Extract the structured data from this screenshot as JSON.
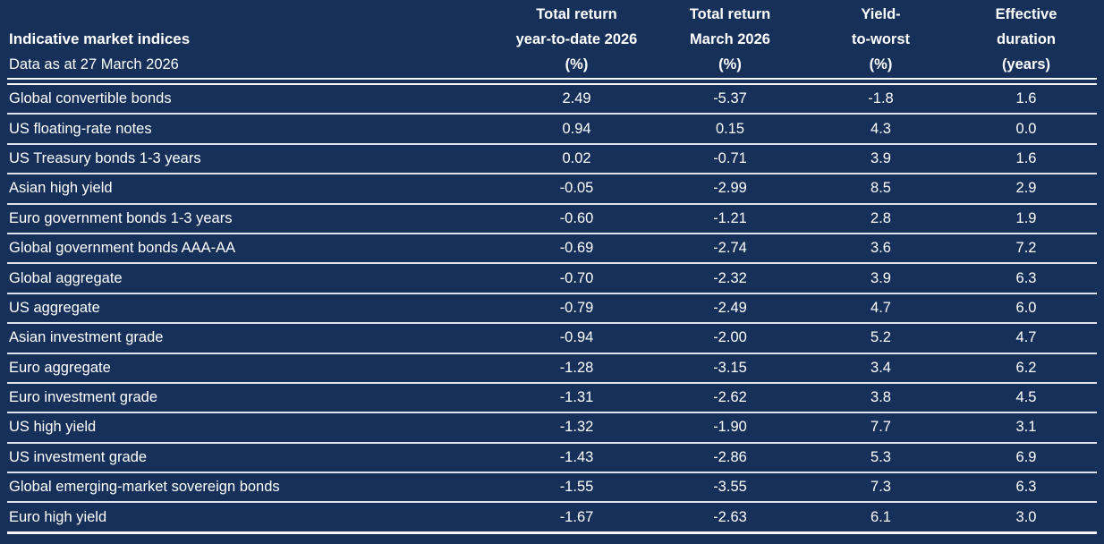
{
  "chart_data": {
    "type": "table",
    "title": "Indicative market indices",
    "subtitle": "Data as at 27 March 2026",
    "column_headers": [
      [
        "Total return",
        "year-to-date 2026",
        "(%)"
      ],
      [
        "Total return",
        "March 2026",
        "(%)"
      ],
      [
        "Yield-",
        "to-worst",
        "(%)"
      ],
      [
        "Effective",
        "duration",
        "(years)"
      ]
    ],
    "rows": [
      {
        "name": "Global convertible bonds",
        "values": [
          "2.49",
          "-5.37",
          "-1.8",
          "1.6"
        ]
      },
      {
        "name": "US floating-rate notes",
        "values": [
          "0.94",
          "0.15",
          "4.3",
          "0.0"
        ]
      },
      {
        "name": "US Treasury bonds 1-3 years",
        "values": [
          "0.02",
          "-0.71",
          "3.9",
          "1.6"
        ]
      },
      {
        "name": "Asian high yield",
        "values": [
          "-0.05",
          "-2.99",
          "8.5",
          "2.9"
        ]
      },
      {
        "name": "Euro government bonds 1-3 years",
        "values": [
          "-0.60",
          "-1.21",
          "2.8",
          "1.9"
        ]
      },
      {
        "name": "Global government bonds AAA-AA",
        "values": [
          "-0.69",
          "-2.74",
          "3.6",
          "7.2"
        ]
      },
      {
        "name": "Global aggregate",
        "values": [
          "-0.70",
          "-2.32",
          "3.9",
          "6.3"
        ]
      },
      {
        "name": "US aggregate",
        "values": [
          "-0.79",
          "-2.49",
          "4.7",
          "6.0"
        ]
      },
      {
        "name": "Asian investment grade",
        "values": [
          "-0.94",
          "-2.00",
          "5.2",
          "4.7"
        ]
      },
      {
        "name": "Euro aggregate",
        "values": [
          "-1.28",
          "-3.15",
          "3.4",
          "6.2"
        ]
      },
      {
        "name": "Euro investment grade",
        "values": [
          "-1.31",
          "-2.62",
          "3.8",
          "4.5"
        ]
      },
      {
        "name": "US high yield",
        "values": [
          "-1.32",
          "-1.90",
          "7.7",
          "3.1"
        ]
      },
      {
        "name": "US investment grade",
        "values": [
          "-1.43",
          "-2.86",
          "5.3",
          "6.9"
        ]
      },
      {
        "name": "Global emerging-market sovereign bonds",
        "values": [
          "-1.55",
          "-3.55",
          "7.3",
          "6.3"
        ]
      },
      {
        "name": "Euro high yield",
        "values": [
          "-1.67",
          "-2.63",
          "6.1",
          "3.0"
        ]
      }
    ]
  },
  "colors": {
    "background": "#16305a",
    "text": "#ffffff",
    "row_line": "#dde2ea",
    "strong_line": "#f6f8fb"
  }
}
